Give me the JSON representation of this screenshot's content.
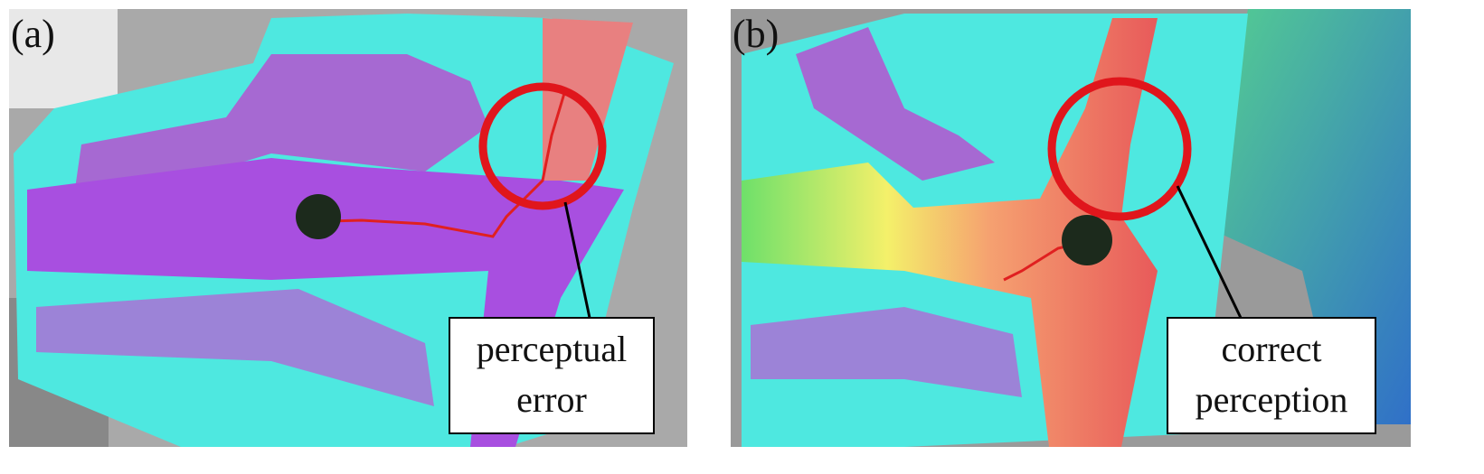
{
  "panels": [
    {
      "label": "(a)",
      "annotation": [
        "perceptual",
        "error"
      ]
    },
    {
      "label": "(b)",
      "annotation": [
        "correct",
        "perception"
      ]
    }
  ]
}
